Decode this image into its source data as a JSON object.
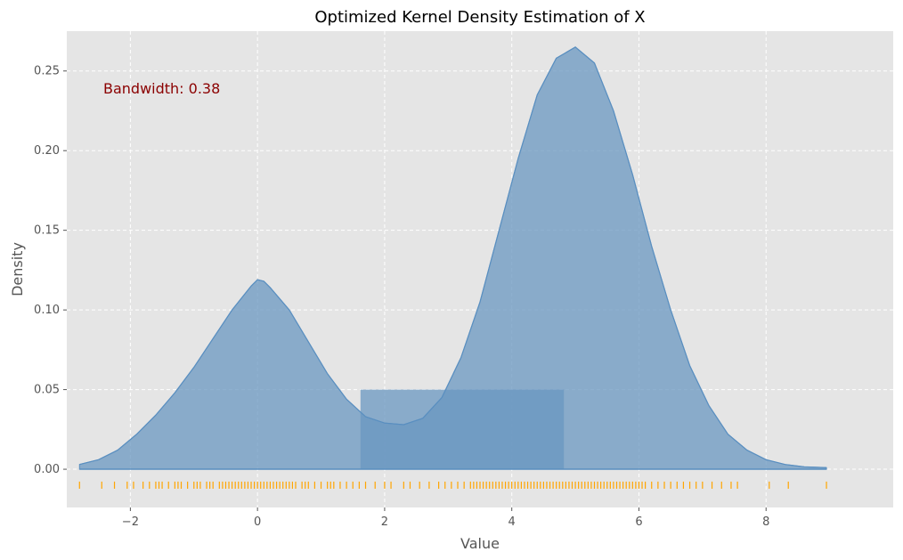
{
  "chart_data": {
    "type": "area",
    "title": "Optimized Kernel Density Estimation of X",
    "xlabel": "Value",
    "ylabel": "Density",
    "xlim": [
      -3.0,
      10.0
    ],
    "ylim": [
      -0.024,
      0.275
    ],
    "x_ticks": [
      -2,
      0,
      2,
      4,
      6,
      8
    ],
    "x_tick_labels": [
      "−2",
      "0",
      "2",
      "4",
      "6",
      "8"
    ],
    "y_ticks": [
      0.0,
      0.05,
      0.1,
      0.15,
      0.2,
      0.25
    ],
    "y_tick_labels": [
      "0.00",
      "0.05",
      "0.10",
      "0.15",
      "0.20",
      "0.25"
    ],
    "grid": true,
    "background": "#e5e5e5",
    "fill_color": "#6a97c0",
    "line_color": "#5a8fc0",
    "rug_color": "#ffa500",
    "annotation": {
      "text": "Bandwidth: 0.38",
      "color": "#8b0000",
      "placement": "top-left"
    },
    "bandwidth": 0.38,
    "density_curve": {
      "x": [
        -2.8,
        -2.5,
        -2.2,
        -1.9,
        -1.6,
        -1.3,
        -1.0,
        -0.7,
        -0.4,
        -0.1,
        0.0,
        0.1,
        0.2,
        0.5,
        0.8,
        1.1,
        1.4,
        1.7,
        2.0,
        2.3,
        2.6,
        2.9,
        3.2,
        3.5,
        3.8,
        4.1,
        4.4,
        4.7,
        5.0,
        5.3,
        5.6,
        5.9,
        6.2,
        6.5,
        6.8,
        7.1,
        7.4,
        7.7,
        8.0,
        8.3,
        8.6,
        8.95
      ],
      "y": [
        0.003,
        0.006,
        0.012,
        0.022,
        0.034,
        0.048,
        0.064,
        0.082,
        0.1,
        0.115,
        0.119,
        0.118,
        0.114,
        0.1,
        0.08,
        0.06,
        0.044,
        0.033,
        0.029,
        0.028,
        0.032,
        0.045,
        0.07,
        0.105,
        0.15,
        0.195,
        0.235,
        0.258,
        0.265,
        0.255,
        0.225,
        0.185,
        0.14,
        0.1,
        0.065,
        0.04,
        0.022,
        0.012,
        0.006,
        0.003,
        0.0015,
        0.001
      ]
    },
    "shaded_band": {
      "x_start": 1.62,
      "x_end": 4.82
    },
    "rug_x": [
      -2.8,
      -2.45,
      -2.25,
      -2.05,
      -1.95,
      -1.8,
      -1.7,
      -1.6,
      -1.55,
      -1.5,
      -1.4,
      -1.3,
      -1.25,
      -1.2,
      -1.1,
      -1.0,
      -0.95,
      -0.9,
      -0.8,
      -0.75,
      -0.7,
      -0.6,
      -0.55,
      -0.5,
      -0.45,
      -0.4,
      -0.35,
      -0.3,
      -0.25,
      -0.2,
      -0.15,
      -0.1,
      -0.05,
      0.0,
      0.05,
      0.1,
      0.15,
      0.2,
      0.25,
      0.3,
      0.35,
      0.4,
      0.45,
      0.5,
      0.55,
      0.6,
      0.7,
      0.75,
      0.8,
      0.9,
      1.0,
      1.1,
      1.15,
      1.2,
      1.3,
      1.4,
      1.5,
      1.6,
      1.7,
      1.85,
      2.0,
      2.1,
      2.3,
      2.4,
      2.55,
      2.7,
      2.85,
      2.95,
      3.05,
      3.15,
      3.25,
      3.35,
      3.4,
      3.45,
      3.5,
      3.55,
      3.6,
      3.65,
      3.7,
      3.75,
      3.8,
      3.85,
      3.9,
      3.95,
      4.0,
      4.05,
      4.1,
      4.15,
      4.2,
      4.25,
      4.3,
      4.35,
      4.4,
      4.45,
      4.5,
      4.55,
      4.6,
      4.65,
      4.7,
      4.75,
      4.8,
      4.85,
      4.9,
      4.95,
      5.0,
      5.05,
      5.1,
      5.15,
      5.2,
      5.25,
      5.3,
      5.35,
      5.4,
      5.45,
      5.5,
      5.55,
      5.6,
      5.65,
      5.7,
      5.75,
      5.8,
      5.85,
      5.9,
      5.95,
      6.0,
      6.05,
      6.1,
      6.2,
      6.3,
      6.4,
      6.5,
      6.6,
      6.7,
      6.8,
      6.9,
      7.0,
      7.15,
      7.3,
      7.45,
      7.55,
      8.05,
      8.35,
      8.95
    ]
  }
}
